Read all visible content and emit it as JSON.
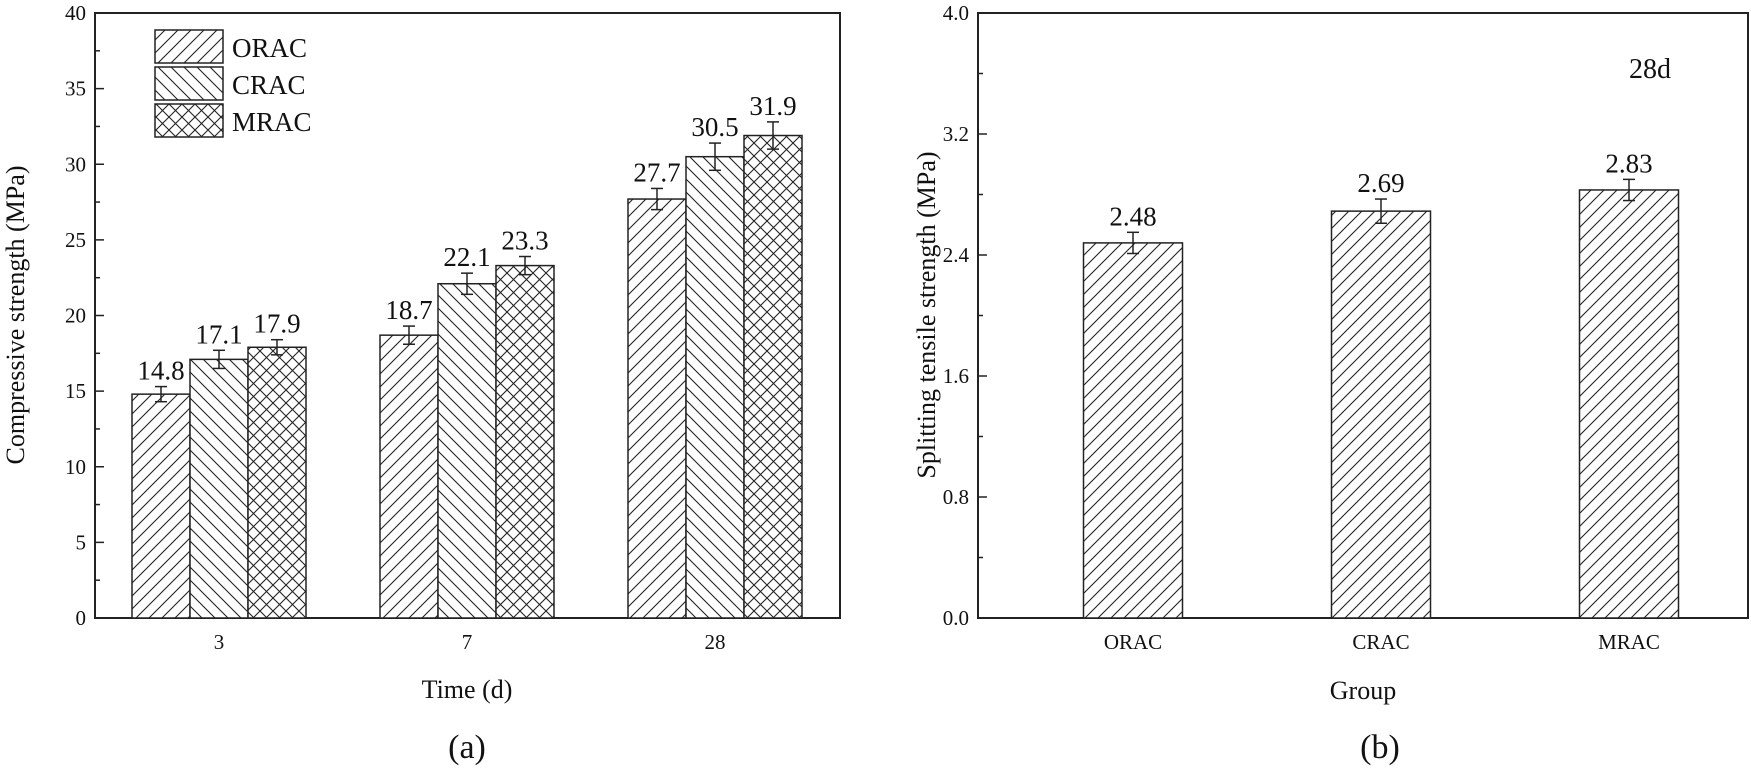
{
  "colors": {
    "ink": "#222222",
    "background": "#ffffff"
  },
  "chart_data": [
    {
      "type": "bar",
      "panel_label": "(a)",
      "xlabel": "Time (d)",
      "ylabel": "Compressive strength (MPa)",
      "ylim": [
        0,
        40
      ],
      "yticks": [
        0,
        5,
        10,
        15,
        20,
        25,
        30,
        35,
        40
      ],
      "categories": [
        "3",
        "7",
        "28"
      ],
      "legend_position": "top-left",
      "series": [
        {
          "name": "ORAC",
          "pattern": "diagonal-up",
          "values": [
            14.8,
            18.7,
            27.7
          ],
          "errors": [
            0.5,
            0.6,
            0.7
          ],
          "labels": [
            "14.8",
            "18.7",
            "27.7"
          ]
        },
        {
          "name": "CRAC",
          "pattern": "diagonal-down",
          "values": [
            17.1,
            22.1,
            30.5
          ],
          "errors": [
            0.6,
            0.7,
            0.9
          ],
          "labels": [
            "17.1",
            "22.1",
            "30.5"
          ]
        },
        {
          "name": "MRAC",
          "pattern": "crosshatch",
          "values": [
            17.9,
            23.3,
            31.9
          ],
          "errors": [
            0.5,
            0.6,
            0.9
          ],
          "labels": [
            "17.9",
            "23.3",
            "31.9"
          ]
        }
      ]
    },
    {
      "type": "bar",
      "panel_label": "(b)",
      "xlabel": "Group",
      "ylabel": "Splitting tensile strength (MPa)",
      "ylim": [
        0,
        4
      ],
      "yticks": [
        "0.0",
        "0.8",
        "1.6",
        "2.4",
        "3.2",
        "4.0"
      ],
      "annotation": "28d",
      "categories": [
        "ORAC",
        "CRAC",
        "MRAC"
      ],
      "series": [
        {
          "pattern": "diagonal-up",
          "values": [
            2.48,
            2.69,
            2.83
          ],
          "errors": [
            0.07,
            0.08,
            0.07
          ],
          "labels": [
            "2.48",
            "2.69",
            "2.83"
          ]
        }
      ]
    }
  ]
}
